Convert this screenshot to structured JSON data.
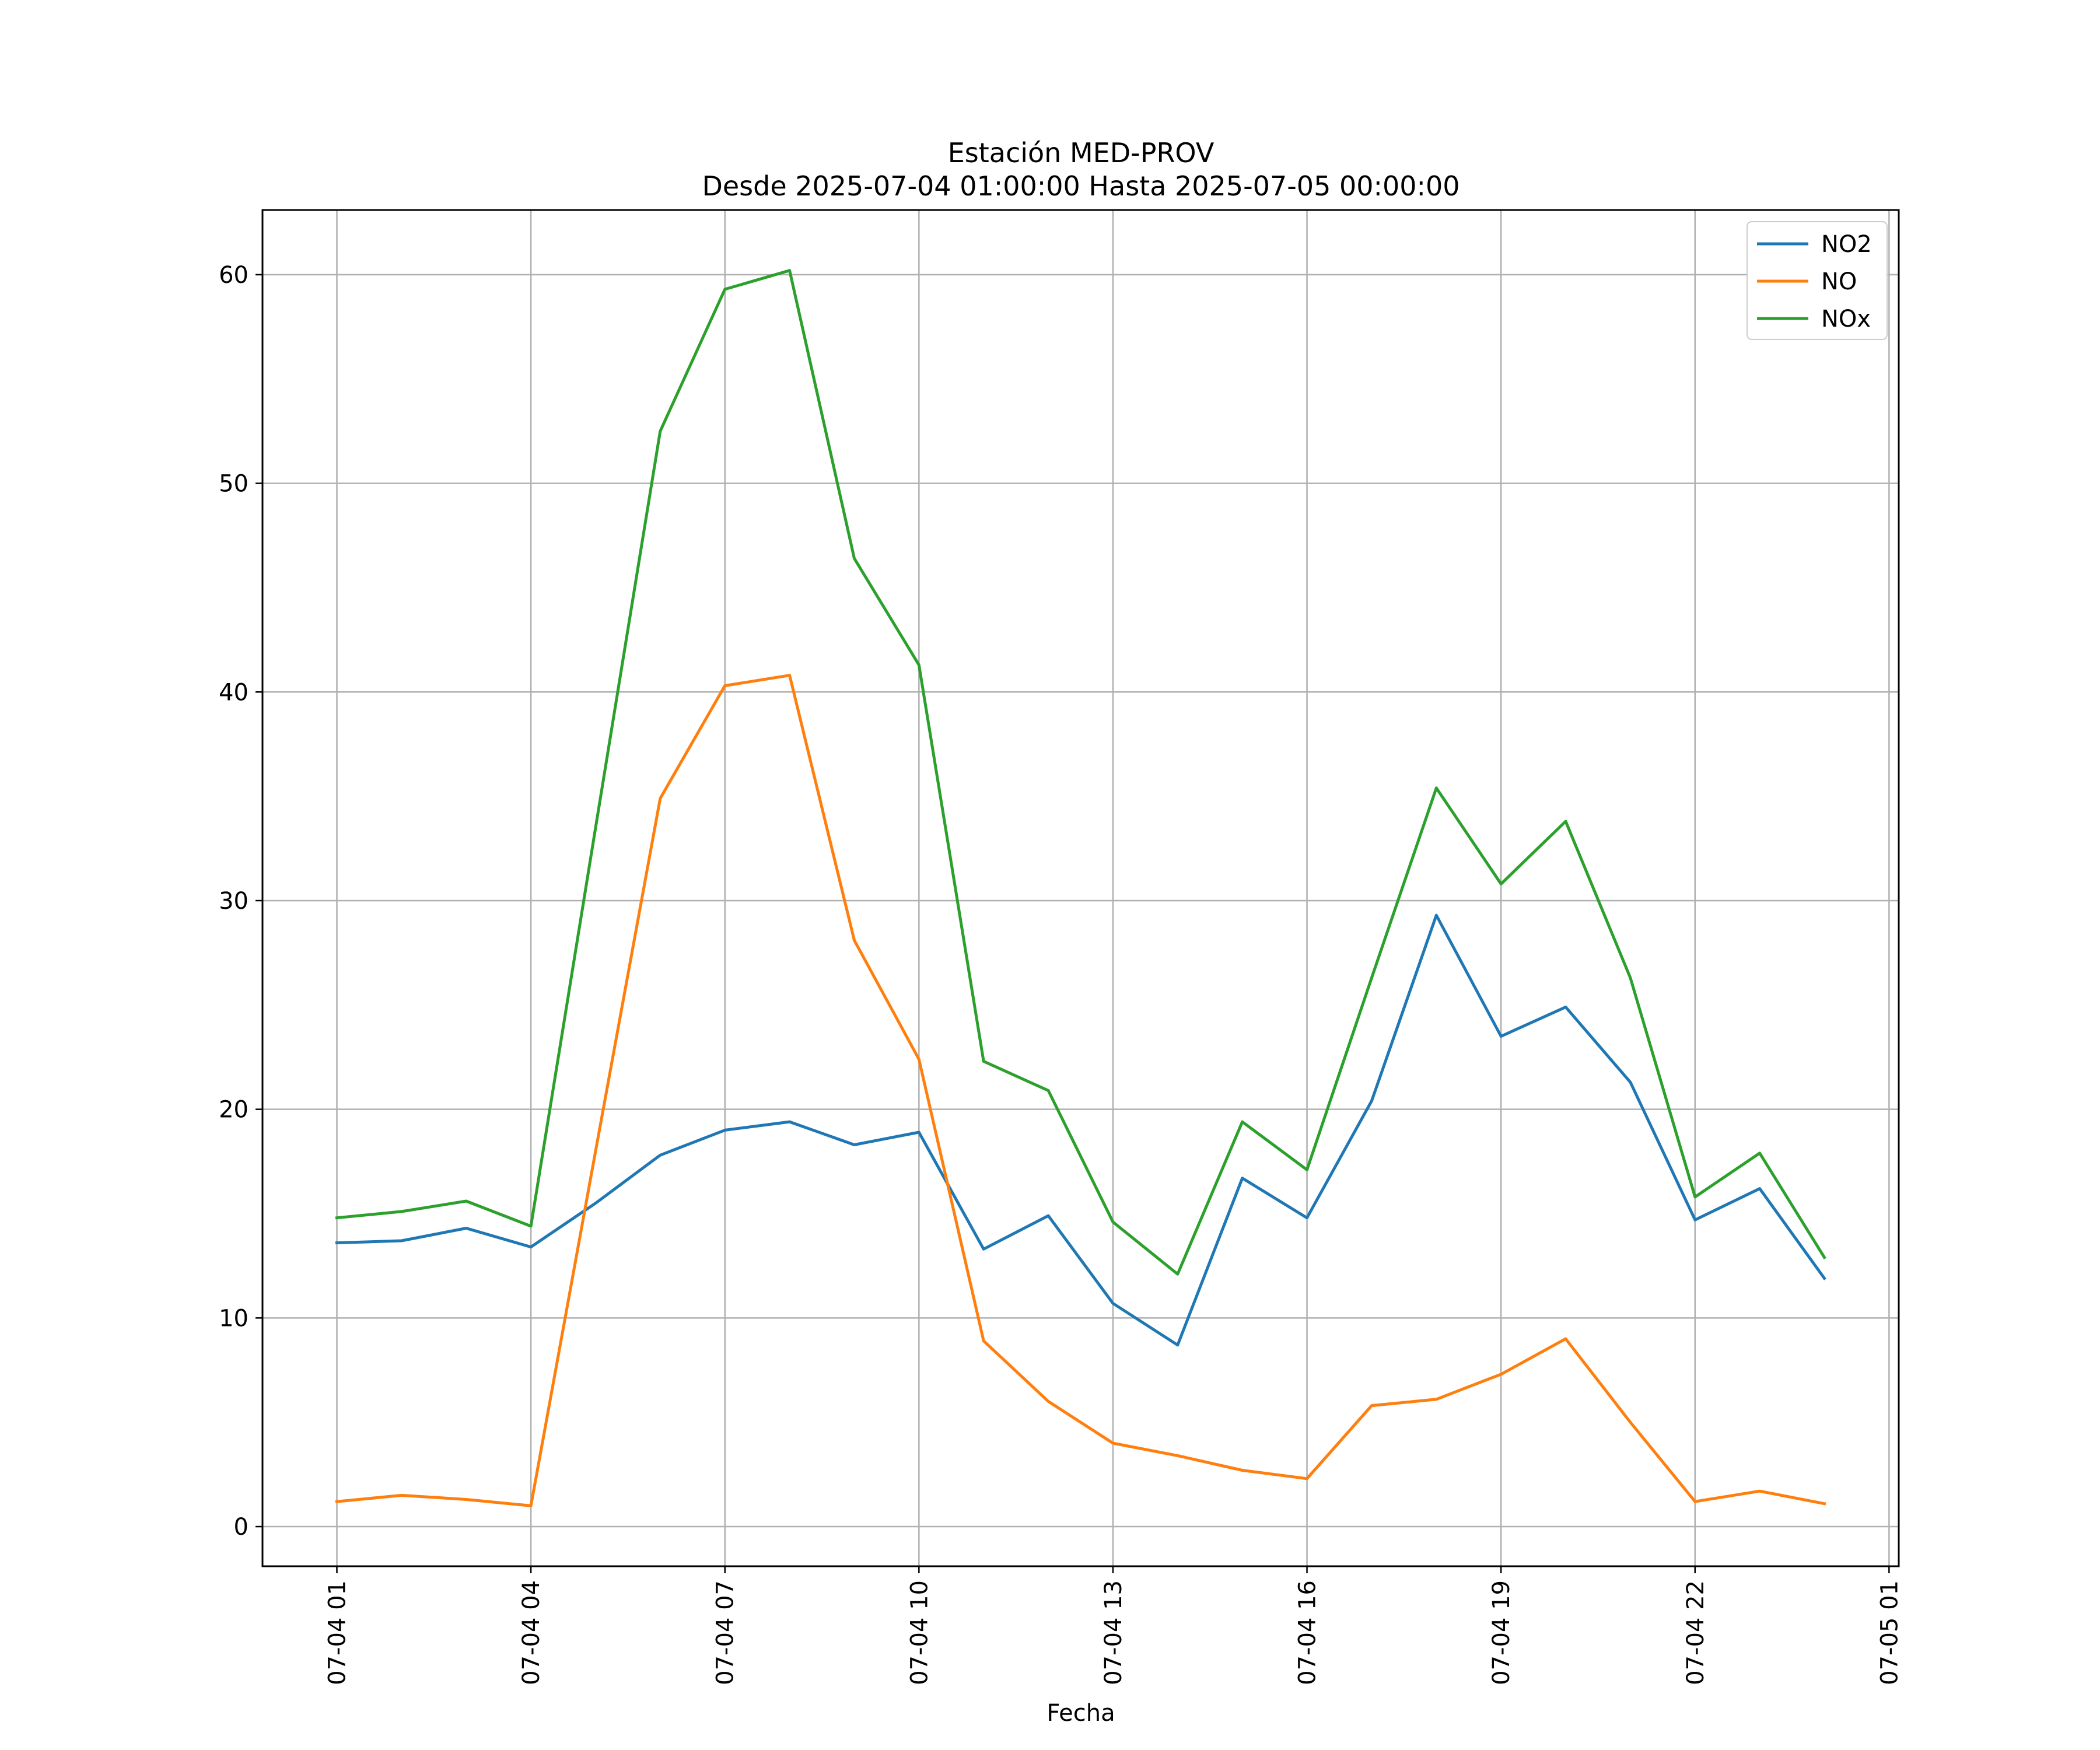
{
  "chart_data": {
    "type": "line",
    "title": "Estación MED-PROV",
    "subtitle": "Desde 2025-07-04 01:00:00 Hasta 2025-07-05 00:00:00",
    "xlabel": "Fecha",
    "ylabel": "",
    "x_hours": [
      1,
      2,
      3,
      4,
      5,
      6,
      7,
      8,
      9,
      10,
      11,
      12,
      13,
      14,
      15,
      16,
      17,
      18,
      19,
      20,
      21,
      22,
      23,
      24
    ],
    "x_tick_hours": [
      1,
      4,
      7,
      10,
      13,
      16,
      19,
      22,
      25
    ],
    "x_tick_labels": [
      "07-04 01",
      "07-04 04",
      "07-04 07",
      "07-04 10",
      "07-04 13",
      "07-04 16",
      "07-04 19",
      "07-04 22",
      "07-05 01"
    ],
    "xlim_hours": [
      -0.15,
      25.15
    ],
    "ylim": [
      -1.9,
      63.1
    ],
    "y_ticks": [
      0,
      10,
      20,
      30,
      40,
      50,
      60
    ],
    "grid": true,
    "legend_position": "top-right",
    "series": [
      {
        "name": "NO2",
        "color": "#1f77b4",
        "values": [
          13.6,
          13.7,
          14.3,
          13.4,
          15.5,
          17.8,
          19.0,
          19.4,
          18.3,
          18.9,
          13.3,
          14.9,
          10.7,
          8.7,
          16.7,
          14.8,
          20.4,
          29.3,
          23.5,
          24.9,
          21.3,
          14.7,
          16.2,
          11.9
        ]
      },
      {
        "name": "NO",
        "color": "#ff7f0e",
        "values": [
          1.2,
          1.5,
          1.3,
          1.0,
          18.0,
          34.9,
          40.3,
          40.8,
          28.1,
          22.4,
          8.9,
          6.0,
          4.0,
          3.4,
          2.7,
          2.3,
          5.8,
          6.1,
          7.3,
          9.0,
          5.0,
          1.2,
          1.7,
          1.1
        ]
      },
      {
        "name": "NOx",
        "color": "#2ca02c",
        "values": [
          14.8,
          15.1,
          15.6,
          14.4,
          33.5,
          52.5,
          59.3,
          60.2,
          46.4,
          41.3,
          22.3,
          20.9,
          14.6,
          12.1,
          19.4,
          17.1,
          26.3,
          35.4,
          30.8,
          33.8,
          26.3,
          15.8,
          17.9,
          12.9
        ]
      }
    ]
  }
}
